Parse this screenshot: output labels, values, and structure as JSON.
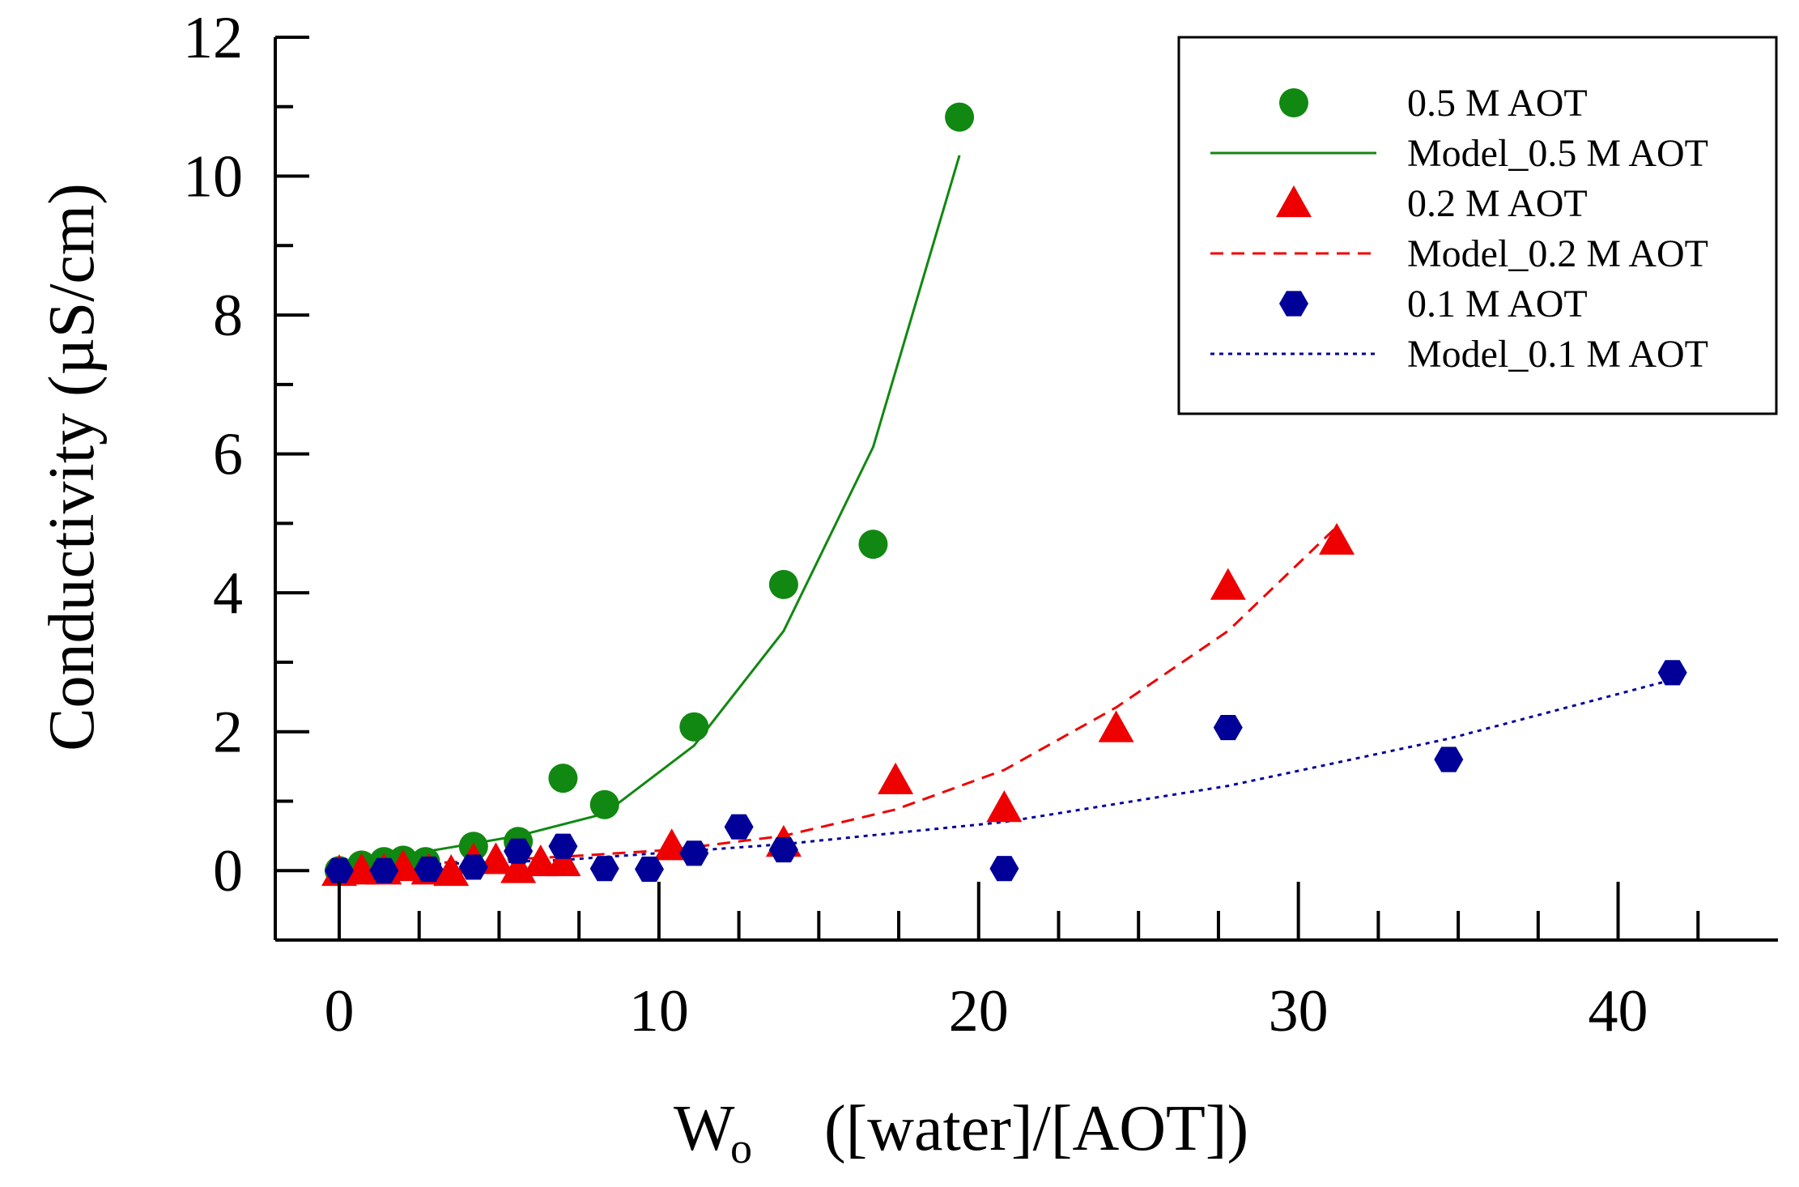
{
  "chart_data": {
    "type": "scatter",
    "xlabel": "W",
    "xlabel_sub": "o",
    "xlabel_rest": "([water]/[AOT])",
    "ylabel": "Conductivity  (µS/cm)",
    "xlim": [
      -2,
      45
    ],
    "ylim": [
      -1,
      12
    ],
    "x_ticks": [
      0,
      10,
      20,
      30,
      40
    ],
    "y_ticks": [
      0,
      2,
      4,
      6,
      8,
      10,
      12
    ],
    "grid": false,
    "legend_position": "top-right",
    "series": [
      {
        "name": "0.5 M AOT",
        "kind": "points",
        "marker": "circle",
        "color": "#118811",
        "x": [
          0,
          0.7,
          1.4,
          2.0,
          2.7,
          4.2,
          5.6,
          7.0,
          8.3,
          11.1,
          13.9,
          16.7,
          19.4
        ],
        "y": [
          0.0,
          0.08,
          0.13,
          0.15,
          0.13,
          0.35,
          0.42,
          1.33,
          0.95,
          2.07,
          4.12,
          4.7,
          10.85
        ]
      },
      {
        "name": "Model_0.5 M AOT",
        "kind": "line",
        "dash": "solid",
        "color": "#118811",
        "x": [
          0,
          2.8,
          5.6,
          8.3,
          11.1,
          13.9,
          16.7,
          19.4
        ],
        "y": [
          0.08,
          0.28,
          0.5,
          0.82,
          1.8,
          3.45,
          6.1,
          10.3
        ]
      },
      {
        "name": "0.2 M AOT",
        "kind": "points",
        "marker": "triangle",
        "color": "#ee0000",
        "x": [
          0,
          0.7,
          1.4,
          2.0,
          2.8,
          3.5,
          4.2,
          4.9,
          5.6,
          6.3,
          7.0,
          10.4,
          13.9,
          17.4,
          20.8,
          24.3,
          27.8,
          31.2
        ],
        "y": [
          -0.02,
          0.0,
          0.0,
          0.05,
          0.0,
          -0.02,
          0.15,
          0.15,
          0.02,
          0.12,
          0.12,
          0.35,
          0.4,
          1.3,
          0.9,
          2.05,
          4.1,
          4.75
        ]
      },
      {
        "name": "Model_0.2 M AOT",
        "kind": "line",
        "dash": "dashed",
        "color": "#ee0000",
        "x": [
          0,
          3.5,
          7.0,
          10.4,
          13.9,
          17.4,
          20.8,
          24.3,
          27.8,
          31.2
        ],
        "y": [
          0.05,
          0.12,
          0.2,
          0.3,
          0.5,
          0.88,
          1.45,
          2.35,
          3.45,
          4.95
        ]
      },
      {
        "name": "0.1 M AOT",
        "kind": "points",
        "marker": "hexagon",
        "color": "#000099",
        "x": [
          0,
          1.4,
          2.8,
          4.2,
          5.6,
          7.0,
          8.3,
          9.7,
          11.1,
          12.5,
          13.9,
          20.8,
          27.8,
          34.7,
          41.7
        ],
        "y": [
          0.0,
          0.0,
          0.02,
          0.05,
          0.28,
          0.35,
          0.03,
          0.02,
          0.25,
          0.63,
          0.3,
          0.03,
          2.06,
          1.6,
          2.85
        ]
      },
      {
        "name": "Model_0.1 M AOT",
        "kind": "line",
        "dash": "dotted",
        "color": "#000099",
        "x": [
          0,
          6.9,
          13.9,
          20.8,
          27.8,
          34.7,
          41.7
        ],
        "y": [
          0.05,
          0.15,
          0.38,
          0.7,
          1.22,
          1.9,
          2.75
        ]
      }
    ]
  }
}
